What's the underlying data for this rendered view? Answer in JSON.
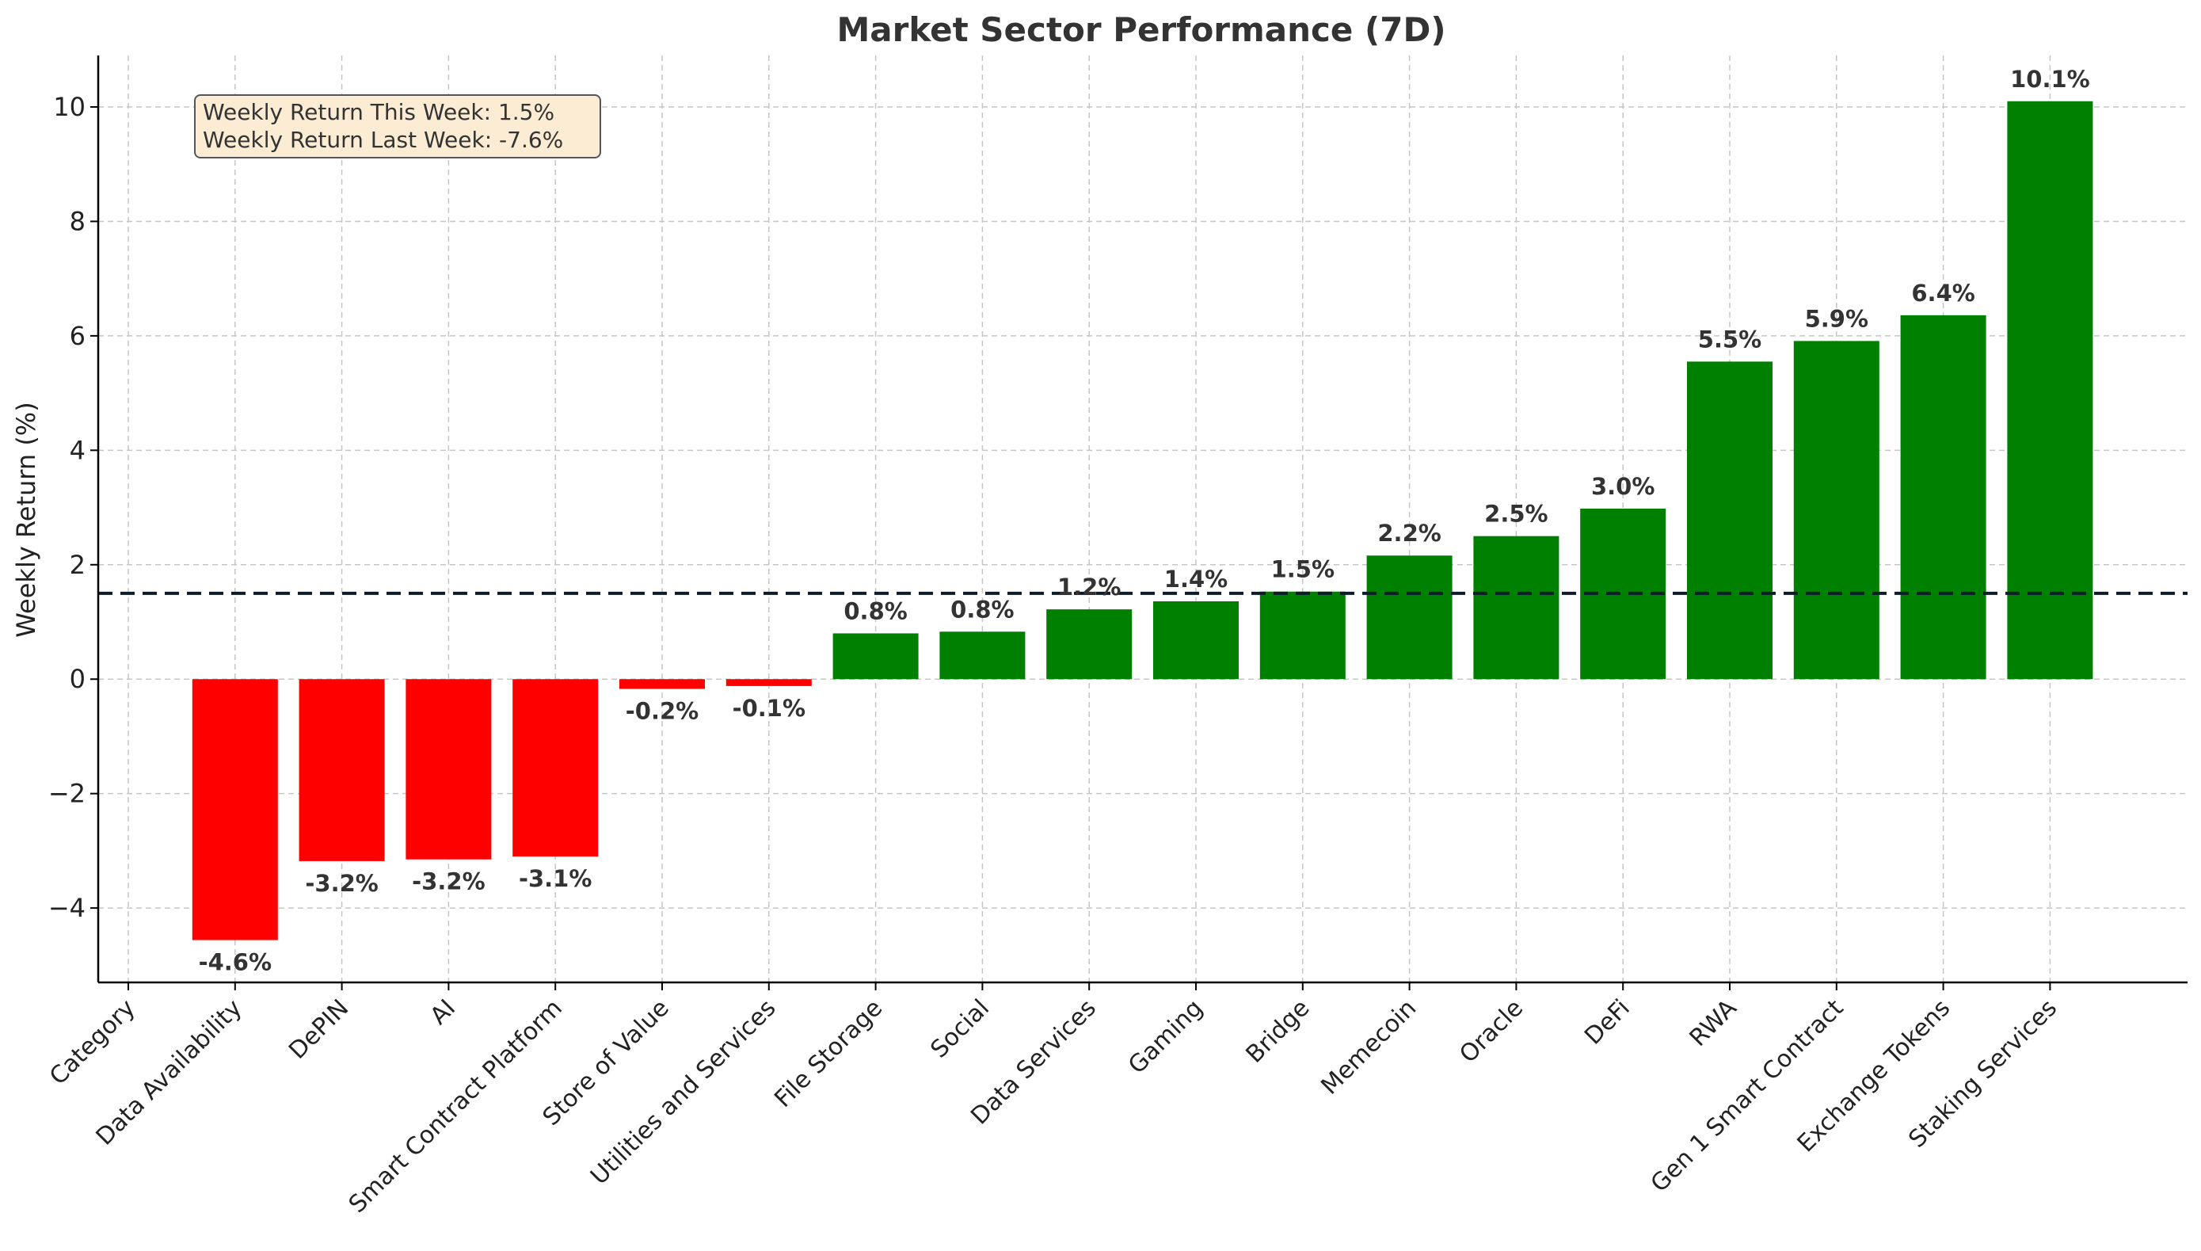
{
  "chart_data": {
    "type": "bar",
    "title": "Market Sector Performance (7D)",
    "xlabel": "",
    "ylabel": "Weekly Return (%)",
    "ylim": [
      -5.3,
      10.9
    ],
    "yticks": [
      -4,
      -2,
      0,
      2,
      4,
      6,
      8,
      10
    ],
    "ytick_labels": [
      "−4",
      "−2",
      "0",
      "2",
      "4",
      "6",
      "8",
      "10"
    ],
    "grid": true,
    "categories": [
      "Category",
      "Data Availability",
      "DePIN",
      "AI",
      "Smart Contract Platform",
      "Store of Value",
      "Utilities and Services",
      "File Storage",
      "Social",
      "Data Services",
      "Gaming",
      "Bridge",
      "Memecoin",
      "Oracle",
      "DeFi",
      "RWA",
      "Gen 1 Smart Contract",
      "Exchange Tokens",
      "Staking Services"
    ],
    "values": [
      null,
      -4.56,
      -3.18,
      -3.15,
      -3.1,
      -0.17,
      -0.12,
      0.8,
      0.83,
      1.22,
      1.36,
      1.53,
      2.16,
      2.5,
      2.98,
      5.55,
      5.91,
      6.36,
      10.1
    ],
    "data_labels": [
      null,
      "-4.6%",
      "-3.2%",
      "-3.2%",
      "-3.1%",
      "-0.2%",
      "-0.1%",
      "0.8%",
      "0.8%",
      "1.2%",
      "1.4%",
      "1.5%",
      "2.2%",
      "2.5%",
      "3.0%",
      "5.5%",
      "5.9%",
      "6.4%",
      "10.1%"
    ],
    "reference_line": {
      "value": 1.5,
      "style": "dashed"
    },
    "colors": {
      "positive": "#008000",
      "negative": "#ff0000",
      "reference": "#0d1b2a"
    },
    "annotation": {
      "lines": [
        "Weekly Return This Week: 1.5%",
        "Weekly Return Last Week: -7.6%"
      ],
      "placement": "top-left"
    }
  }
}
